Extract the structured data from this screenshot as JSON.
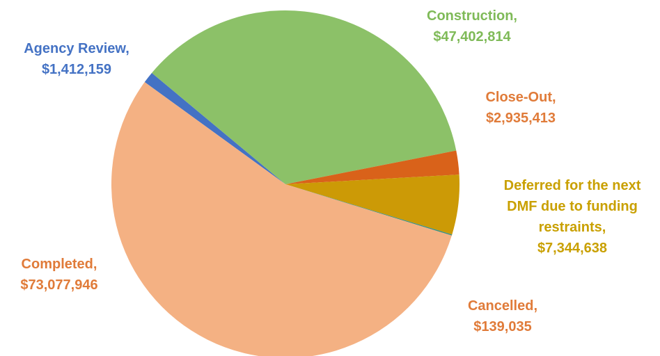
{
  "chart_data": {
    "type": "pie",
    "categories": [
      "Agency Review,",
      "Construction,",
      "Close-Out,",
      "Deferred for the next DMF due to funding restraints,",
      "Cancelled,",
      "Completed,"
    ],
    "values": [
      1412159,
      47402814,
      2935413,
      7344638,
      139035,
      73077946
    ],
    "value_labels": [
      "$1,412,159",
      "$47,402,814",
      "$2,935,413",
      "$7,344,638",
      "$139,035",
      "$73,077,946"
    ],
    "colors": [
      "#4472c4",
      "#8cc168",
      "#d9621a",
      "#cc9a06",
      "#3f8f7f",
      "#f4b183"
    ],
    "label_colors": [
      "#4472c4",
      "#7fba58",
      "#e07b39",
      "#c9a000",
      "#e07b39",
      "#e07b39"
    ]
  }
}
